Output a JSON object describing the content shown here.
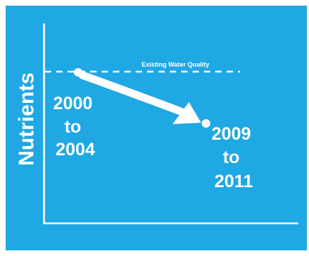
{
  "axis": {
    "y_label": "Nutrients"
  },
  "reference": {
    "label": "Existing Water Quality"
  },
  "start_period": {
    "line1": "2000",
    "line2": "to",
    "line3": "2004"
  },
  "end_period": {
    "line1": "2009",
    "line2": "to",
    "line3": "2011"
  },
  "colors": {
    "background": "#1fa8e3",
    "foreground": "#ffffff"
  }
}
